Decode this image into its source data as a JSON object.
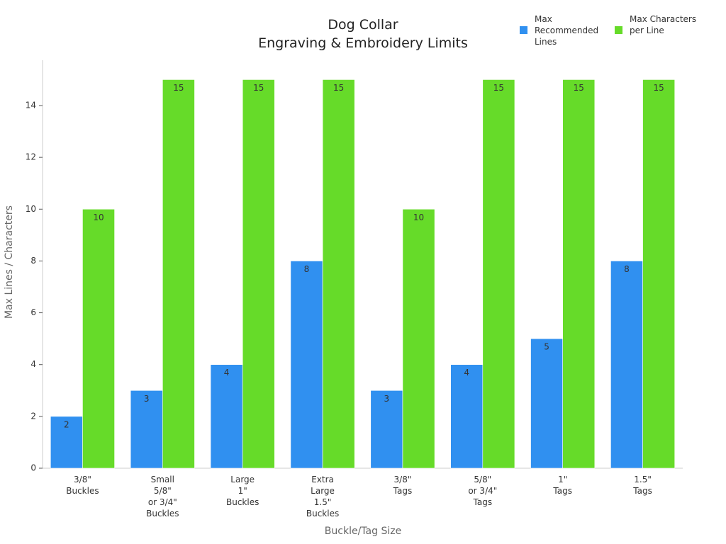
{
  "chart_data": {
    "type": "bar",
    "title": "Dog Collar\nEngraving & Embroidery Limits",
    "x_label": "Buckle/Tag Size",
    "y_label": "Max Lines / Characters",
    "categories": [
      "3/8\"\nBuckles",
      "Small\n5/8\"\nor 3/4\"\nBuckles",
      "Large\n1\"\nBuckles",
      "Extra\nLarge\n1.5\"\nBuckles",
      "3/8\"\nTags",
      "5/8\"\nor 3/4\"\nTags",
      "1\"\nTags",
      "1.5\"\nTags"
    ],
    "series": [
      {
        "name": "Max Recommended Lines",
        "color": "#3090f0",
        "values": [
          2,
          3,
          4,
          8,
          3,
          4,
          5,
          8
        ]
      },
      {
        "name": "Max Characters per Line",
        "color": "#66db29",
        "values": [
          10,
          15,
          15,
          15,
          10,
          15,
          15,
          15
        ]
      }
    ],
    "ylim": [
      0,
      15.75
    ],
    "yticks": [
      0,
      2,
      4,
      6,
      8,
      10,
      12,
      14
    ],
    "legend": "top-right"
  }
}
